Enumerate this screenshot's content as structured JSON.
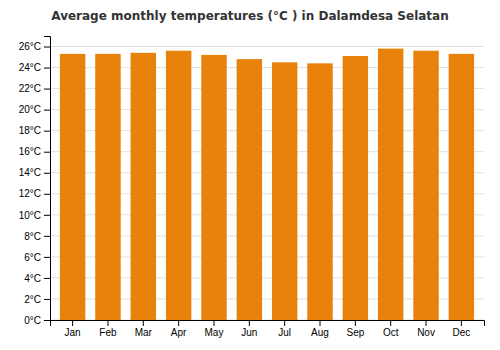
{
  "chart_data": {
    "type": "bar",
    "title": "Average monthly temperatures (°C ) in Dalamdesa Selatan",
    "categories": [
      "Jan",
      "Feb",
      "Mar",
      "Apr",
      "May",
      "Jun",
      "Jul",
      "Aug",
      "Sep",
      "Oct",
      "Nov",
      "Dec"
    ],
    "values": [
      25.3,
      25.3,
      25.4,
      25.6,
      25.2,
      24.8,
      24.5,
      24.4,
      25.1,
      25.8,
      25.6,
      25.3
    ],
    "color": "#E8820A",
    "ylim": [
      0,
      27
    ],
    "yticks": [
      {
        "value": 0,
        "label": "0°C"
      },
      {
        "value": 2,
        "label": "2°C"
      },
      {
        "value": 4,
        "label": "4°C"
      },
      {
        "value": 6,
        "label": "6°C"
      },
      {
        "value": 8,
        "label": "8°C"
      },
      {
        "value": 10,
        "label": "10°C"
      },
      {
        "value": 12,
        "label": "12°C"
      },
      {
        "value": 14,
        "label": "14°C"
      },
      {
        "value": 16,
        "label": "16°C"
      },
      {
        "value": 18,
        "label": "18°C"
      },
      {
        "value": 20,
        "label": "20°C"
      },
      {
        "value": 22,
        "label": "22°C"
      },
      {
        "value": 24,
        "label": "24°C"
      },
      {
        "value": 26,
        "label": "26°C"
      }
    ],
    "grid": true
  }
}
